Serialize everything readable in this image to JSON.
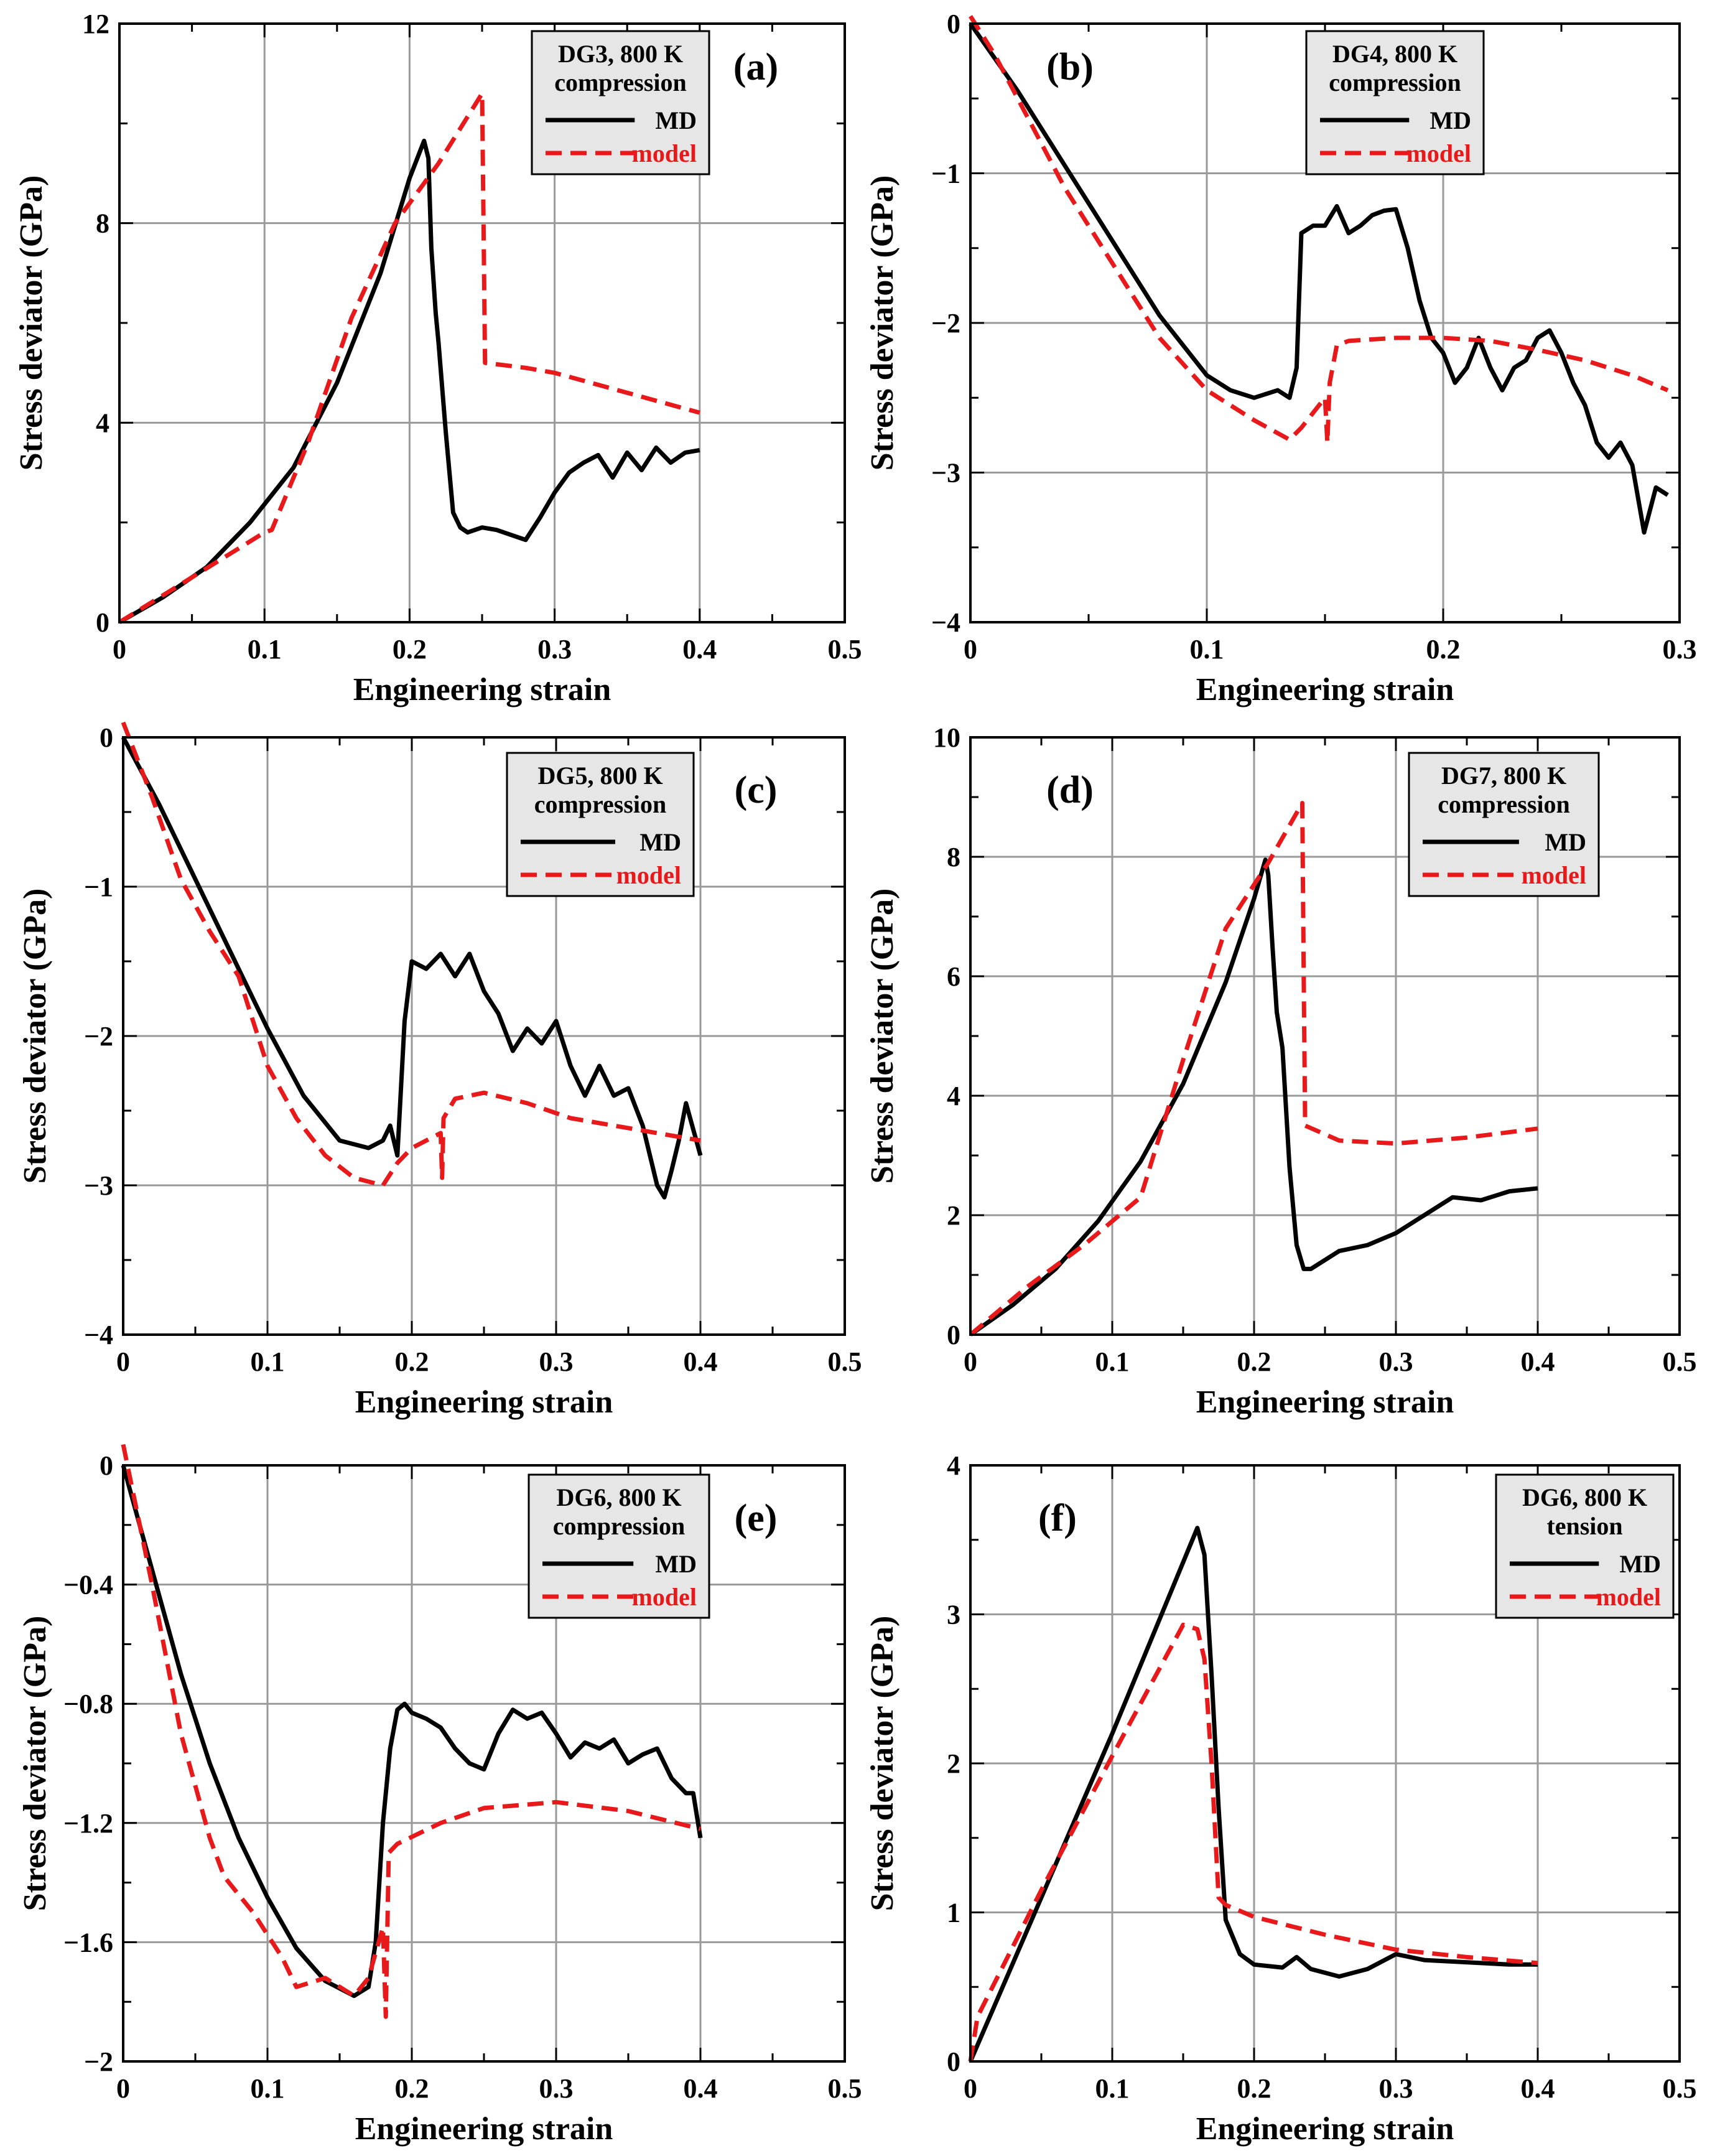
{
  "figure": {
    "colors": {
      "md": "#000000",
      "model": "#e8191b",
      "grid": "#9a9a9a",
      "legend_bg": "#e6e6e6"
    }
  },
  "chart_data": [
    {
      "type": "line",
      "panel_label": "(a)",
      "xlabel": "Engineering strain",
      "ylabel": "Stress deviator (GPa)",
      "xlim": [
        0,
        0.5
      ],
      "ylim": [
        0,
        12
      ],
      "xticks": [
        0,
        0.1,
        0.2,
        0.3,
        0.4,
        0.5
      ],
      "xtick_labels": [
        "0",
        "0.1",
        "0.2",
        "0.3",
        "0.4",
        "0.5"
      ],
      "yticks": [
        0,
        4,
        8,
        12
      ],
      "ytick_labels": [
        "0",
        "4",
        "8",
        "12"
      ],
      "grid": true,
      "legend": {
        "title": [
          "DG3, 800 K",
          "compression"
        ],
        "entries": [
          "MD",
          "model"
        ]
      },
      "series": [
        {
          "name": "MD",
          "style": "solid",
          "x": [
            0,
            0.03,
            0.06,
            0.09,
            0.12,
            0.15,
            0.18,
            0.2,
            0.21,
            0.213,
            0.215,
            0.218,
            0.22,
            0.225,
            0.23,
            0.235,
            0.24,
            0.25,
            0.26,
            0.27,
            0.28,
            0.29,
            0.3,
            0.31,
            0.32,
            0.33,
            0.34,
            0.35,
            0.36,
            0.37,
            0.38,
            0.39,
            0.4
          ],
          "y": [
            0,
            0.5,
            1.1,
            2.0,
            3.1,
            4.8,
            7.0,
            8.9,
            9.65,
            9.3,
            7.5,
            6.2,
            5.6,
            3.8,
            2.2,
            1.9,
            1.8,
            1.9,
            1.85,
            1.75,
            1.65,
            2.1,
            2.6,
            3.0,
            3.2,
            3.35,
            2.9,
            3.4,
            3.05,
            3.5,
            3.2,
            3.4,
            3.45
          ]
        },
        {
          "name": "model",
          "style": "dashed",
          "x": [
            0,
            0.05,
            0.1,
            0.105,
            0.13,
            0.16,
            0.19,
            0.22,
            0.25,
            0.251,
            0.252,
            0.28,
            0.3,
            0.35,
            0.4
          ],
          "y": [
            0,
            0.9,
            1.8,
            1.85,
            3.6,
            6.1,
            8.0,
            9.2,
            10.6,
            8.0,
            5.2,
            5.1,
            5.0,
            4.6,
            4.2
          ]
        }
      ]
    },
    {
      "type": "line",
      "panel_label": "(b)",
      "xlabel": "Engineering strain",
      "ylabel": "Stress deviator (GPa)",
      "xlim": [
        0,
        0.3
      ],
      "ylim": [
        -4,
        0
      ],
      "xticks": [
        0,
        0.1,
        0.2,
        0.3
      ],
      "xtick_labels": [
        "0",
        "0.1",
        "0.2",
        "0.3"
      ],
      "yticks": [
        -4,
        -3,
        -2,
        -1,
        0
      ],
      "ytick_labels": [
        "−4",
        "−3",
        "−2",
        "−1",
        "0"
      ],
      "grid": true,
      "legend": {
        "title": [
          "DG4, 800 K",
          "compression"
        ],
        "entries": [
          "MD",
          "model"
        ]
      },
      "series": [
        {
          "name": "MD",
          "style": "solid",
          "x": [
            0,
            0.02,
            0.04,
            0.06,
            0.08,
            0.1,
            0.11,
            0.12,
            0.13,
            0.135,
            0.138,
            0.14,
            0.145,
            0.15,
            0.155,
            0.16,
            0.165,
            0.17,
            0.175,
            0.18,
            0.185,
            0.19,
            0.195,
            0.2,
            0.205,
            0.21,
            0.215,
            0.22,
            0.225,
            0.23,
            0.235,
            0.24,
            0.245,
            0.25,
            0.255,
            0.26,
            0.265,
            0.27,
            0.275,
            0.28,
            0.285,
            0.29,
            0.295
          ],
          "y": [
            0,
            -0.45,
            -0.95,
            -1.45,
            -1.95,
            -2.35,
            -2.45,
            -2.5,
            -2.45,
            -2.5,
            -2.3,
            -1.4,
            -1.35,
            -1.35,
            -1.22,
            -1.4,
            -1.35,
            -1.28,
            -1.25,
            -1.24,
            -1.5,
            -1.85,
            -2.1,
            -2.2,
            -2.4,
            -2.3,
            -2.1,
            -2.3,
            -2.45,
            -2.3,
            -2.25,
            -2.1,
            -2.05,
            -2.2,
            -2.4,
            -2.55,
            -2.8,
            -2.9,
            -2.8,
            -2.95,
            -3.4,
            -3.1,
            -3.15
          ]
        },
        {
          "name": "model",
          "style": "dashed",
          "x": [
            0,
            0.01,
            0.02,
            0.04,
            0.06,
            0.08,
            0.1,
            0.12,
            0.135,
            0.14,
            0.145,
            0.15,
            0.151,
            0.152,
            0.155,
            0.16,
            0.18,
            0.2,
            0.22,
            0.24,
            0.26,
            0.28,
            0.295
          ],
          "y": [
            0.05,
            -0.2,
            -0.5,
            -1.1,
            -1.6,
            -2.1,
            -2.45,
            -2.65,
            -2.78,
            -2.7,
            -2.6,
            -2.5,
            -2.8,
            -2.4,
            -2.15,
            -2.12,
            -2.1,
            -2.1,
            -2.12,
            -2.18,
            -2.25,
            -2.35,
            -2.45
          ]
        }
      ]
    },
    {
      "type": "line",
      "panel_label": "(c)",
      "xlabel": "Engineering strain",
      "ylabel": "Stress deviator (GPa)",
      "xlim": [
        0,
        0.5
      ],
      "ylim": [
        -4,
        0
      ],
      "xticks": [
        0,
        0.1,
        0.2,
        0.3,
        0.4,
        0.5
      ],
      "xtick_labels": [
        "0",
        "0.1",
        "0.2",
        "0.3",
        "0.4",
        "0.5"
      ],
      "yticks": [
        -4,
        -3,
        -2,
        -1,
        0
      ],
      "ytick_labels": [
        "−4",
        "−3",
        "−2",
        "−1",
        "0"
      ],
      "grid": true,
      "legend": {
        "title": [
          "DG5, 800 K",
          "compression"
        ],
        "entries": [
          "MD",
          "model"
        ]
      },
      "series": [
        {
          "name": "MD",
          "style": "solid",
          "x": [
            0,
            0.025,
            0.05,
            0.075,
            0.1,
            0.125,
            0.15,
            0.17,
            0.18,
            0.185,
            0.19,
            0.195,
            0.2,
            0.21,
            0.22,
            0.23,
            0.24,
            0.25,
            0.26,
            0.27,
            0.28,
            0.29,
            0.3,
            0.31,
            0.32,
            0.33,
            0.34,
            0.35,
            0.36,
            0.37,
            0.375,
            0.38,
            0.385,
            0.39,
            0.4
          ],
          "y": [
            0,
            -0.45,
            -0.95,
            -1.45,
            -1.95,
            -2.4,
            -2.7,
            -2.75,
            -2.7,
            -2.6,
            -2.8,
            -1.9,
            -1.5,
            -1.55,
            -1.45,
            -1.6,
            -1.45,
            -1.7,
            -1.85,
            -2.1,
            -1.95,
            -2.05,
            -1.9,
            -2.2,
            -2.4,
            -2.2,
            -2.4,
            -2.35,
            -2.6,
            -3.0,
            -3.08,
            -2.9,
            -2.7,
            -2.45,
            -2.8
          ]
        },
        {
          "name": "model",
          "style": "dashed",
          "x": [
            0,
            0.02,
            0.04,
            0.06,
            0.08,
            0.1,
            0.12,
            0.14,
            0.16,
            0.18,
            0.19,
            0.2,
            0.21,
            0.22,
            0.221,
            0.222,
            0.23,
            0.25,
            0.28,
            0.31,
            0.34,
            0.37,
            0.4
          ],
          "y": [
            0.1,
            -0.4,
            -0.95,
            -1.3,
            -1.6,
            -2.2,
            -2.55,
            -2.8,
            -2.95,
            -3.0,
            -2.85,
            -2.75,
            -2.7,
            -2.65,
            -2.95,
            -2.55,
            -2.42,
            -2.38,
            -2.45,
            -2.55,
            -2.6,
            -2.65,
            -2.7
          ]
        }
      ]
    },
    {
      "type": "line",
      "panel_label": "(d)",
      "xlabel": "Engineering strain",
      "ylabel": "Stress deviator (GPa)",
      "xlim": [
        0,
        0.5
      ],
      "ylim": [
        0,
        10
      ],
      "xticks": [
        0,
        0.1,
        0.2,
        0.3,
        0.4,
        0.5
      ],
      "xtick_labels": [
        "0",
        "0.1",
        "0.2",
        "0.3",
        "0.4",
        "0.5"
      ],
      "yticks": [
        0,
        2,
        4,
        6,
        8,
        10
      ],
      "ytick_labels": [
        "0",
        "2",
        "4",
        "6",
        "8",
        "10"
      ],
      "grid": true,
      "legend": {
        "title": [
          "DG7, 800 K",
          "compression"
        ],
        "entries": [
          "MD",
          "model"
        ]
      },
      "series": [
        {
          "name": "MD",
          "style": "solid",
          "x": [
            0,
            0.03,
            0.06,
            0.09,
            0.12,
            0.15,
            0.18,
            0.2,
            0.208,
            0.21,
            0.213,
            0.216,
            0.22,
            0.225,
            0.23,
            0.235,
            0.24,
            0.26,
            0.28,
            0.3,
            0.32,
            0.34,
            0.36,
            0.38,
            0.4
          ],
          "y": [
            0,
            0.5,
            1.1,
            1.9,
            2.9,
            4.2,
            5.9,
            7.3,
            7.95,
            7.7,
            6.5,
            5.4,
            4.8,
            2.8,
            1.5,
            1.1,
            1.1,
            1.4,
            1.5,
            1.7,
            2.0,
            2.3,
            2.25,
            2.4,
            2.45
          ]
        },
        {
          "name": "model",
          "style": "dashed",
          "x": [
            0,
            0.04,
            0.08,
            0.12,
            0.15,
            0.18,
            0.21,
            0.234,
            0.235,
            0.236,
            0.26,
            0.3,
            0.35,
            0.4
          ],
          "y": [
            0,
            0.8,
            1.5,
            2.3,
            4.6,
            6.8,
            7.9,
            8.9,
            6.0,
            3.5,
            3.25,
            3.2,
            3.3,
            3.45
          ]
        }
      ]
    },
    {
      "type": "line",
      "panel_label": "(e)",
      "xlabel": "Engineering strain",
      "ylabel": "Stress deviator (GPa)",
      "xlim": [
        0,
        0.5
      ],
      "ylim": [
        -2,
        0
      ],
      "xticks": [
        0,
        0.1,
        0.2,
        0.3,
        0.4,
        0.5
      ],
      "xtick_labels": [
        "0",
        "0.1",
        "0.2",
        "0.3",
        "0.4",
        "0.5"
      ],
      "yticks": [
        -2,
        -1.6,
        -1.2,
        -0.8,
        -0.4,
        0
      ],
      "ytick_labels": [
        "−2",
        "−1.6",
        "−1.2",
        "−0.8",
        "−0.4",
        "0"
      ],
      "grid": true,
      "legend": {
        "title": [
          "DG6, 800 K",
          "compression"
        ],
        "entries": [
          "MD",
          "model"
        ]
      },
      "series": [
        {
          "name": "MD",
          "style": "solid",
          "x": [
            0,
            0.02,
            0.04,
            0.06,
            0.08,
            0.1,
            0.12,
            0.14,
            0.16,
            0.17,
            0.175,
            0.18,
            0.185,
            0.19,
            0.195,
            0.2,
            0.21,
            0.22,
            0.23,
            0.24,
            0.25,
            0.26,
            0.27,
            0.28,
            0.29,
            0.3,
            0.31,
            0.32,
            0.33,
            0.34,
            0.35,
            0.36,
            0.37,
            0.38,
            0.39,
            0.395,
            0.4
          ],
          "y": [
            0,
            -0.35,
            -0.7,
            -1.0,
            -1.25,
            -1.45,
            -1.62,
            -1.73,
            -1.78,
            -1.75,
            -1.6,
            -1.2,
            -0.95,
            -0.82,
            -0.8,
            -0.83,
            -0.85,
            -0.88,
            -0.95,
            -1.0,
            -1.02,
            -0.9,
            -0.82,
            -0.85,
            -0.83,
            -0.9,
            -0.98,
            -0.93,
            -0.95,
            -0.92,
            -1.0,
            -0.97,
            -0.95,
            -1.05,
            -1.1,
            -1.1,
            -1.25
          ]
        },
        {
          "name": "model",
          "style": "dashed",
          "x": [
            0,
            0.02,
            0.04,
            0.06,
            0.07,
            0.09,
            0.11,
            0.12,
            0.14,
            0.16,
            0.17,
            0.18,
            0.182,
            0.184,
            0.19,
            0.22,
            0.25,
            0.3,
            0.35,
            0.4
          ],
          "y": [
            0.07,
            -0.4,
            -0.9,
            -1.25,
            -1.38,
            -1.5,
            -1.65,
            -1.75,
            -1.72,
            -1.78,
            -1.72,
            -1.55,
            -1.85,
            -1.3,
            -1.27,
            -1.2,
            -1.15,
            -1.13,
            -1.16,
            -1.22
          ]
        }
      ]
    },
    {
      "type": "line",
      "panel_label": "(f)",
      "xlabel": "Engineering strain",
      "ylabel": "Stress deviator (GPa)",
      "xlim": [
        0,
        0.5
      ],
      "ylim": [
        0,
        4
      ],
      "xticks": [
        0,
        0.1,
        0.2,
        0.3,
        0.4,
        0.5
      ],
      "xtick_labels": [
        "0",
        "0.1",
        "0.2",
        "0.3",
        "0.4",
        "0.5"
      ],
      "yticks": [
        0,
        1,
        2,
        3,
        4
      ],
      "ytick_labels": [
        "0",
        "1",
        "2",
        "3",
        "4"
      ],
      "grid": true,
      "legend": {
        "title": [
          "DG6, 800 K",
          "tension"
        ],
        "entries": [
          "MD",
          "model"
        ]
      },
      "series": [
        {
          "name": "MD",
          "style": "solid",
          "x": [
            0,
            0.05,
            0.1,
            0.15,
            0.16,
            0.165,
            0.17,
            0.175,
            0.18,
            0.19,
            0.2,
            0.22,
            0.23,
            0.24,
            0.26,
            0.28,
            0.3,
            0.32,
            0.34,
            0.36,
            0.38,
            0.4
          ],
          "y": [
            0,
            1.1,
            2.2,
            3.35,
            3.58,
            3.4,
            2.6,
            1.7,
            0.95,
            0.72,
            0.65,
            0.63,
            0.7,
            0.62,
            0.57,
            0.62,
            0.72,
            0.68,
            0.67,
            0.66,
            0.65,
            0.65
          ]
        },
        {
          "name": "model",
          "style": "dashed",
          "x": [
            0,
            0.005,
            0.05,
            0.1,
            0.15,
            0.16,
            0.165,
            0.17,
            0.175,
            0.18,
            0.2,
            0.25,
            0.3,
            0.35,
            0.4
          ],
          "y": [
            0,
            0.3,
            1.15,
            2.05,
            2.93,
            2.9,
            2.7,
            2.0,
            1.1,
            1.05,
            0.97,
            0.85,
            0.75,
            0.7,
            0.66
          ]
        }
      ]
    }
  ]
}
